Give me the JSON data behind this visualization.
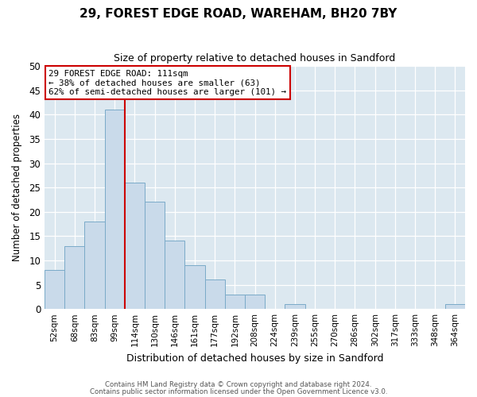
{
  "title": "29, FOREST EDGE ROAD, WAREHAM, BH20 7BY",
  "subtitle": "Size of property relative to detached houses in Sandford",
  "xlabel": "Distribution of detached houses by size in Sandford",
  "ylabel": "Number of detached properties",
  "bar_labels": [
    "52sqm",
    "68sqm",
    "83sqm",
    "99sqm",
    "114sqm",
    "130sqm",
    "146sqm",
    "161sqm",
    "177sqm",
    "192sqm",
    "208sqm",
    "224sqm",
    "239sqm",
    "255sqm",
    "270sqm",
    "286sqm",
    "302sqm",
    "317sqm",
    "333sqm",
    "348sqm",
    "364sqm"
  ],
  "bar_values": [
    8,
    13,
    18,
    41,
    26,
    22,
    14,
    9,
    6,
    3,
    3,
    0,
    1,
    0,
    0,
    0,
    0,
    0,
    0,
    0,
    1
  ],
  "bar_color": "#c9daea",
  "bar_edge_color": "#7aaac8",
  "vline_x_index": 3.5,
  "vline_color": "#cc0000",
  "ylim": [
    0,
    50
  ],
  "yticks": [
    0,
    5,
    10,
    15,
    20,
    25,
    30,
    35,
    40,
    45,
    50
  ],
  "annotation_text": "29 FOREST EDGE ROAD: 111sqm\n← 38% of detached houses are smaller (63)\n62% of semi-detached houses are larger (101) →",
  "annotation_box_color": "#cc0000",
  "footer_line1": "Contains HM Land Registry data © Crown copyright and database right 2024.",
  "footer_line2": "Contains public sector information licensed under the Open Government Licence v3.0.",
  "fig_bg_color": "#ffffff",
  "plot_bg_color": "#dce8f0"
}
